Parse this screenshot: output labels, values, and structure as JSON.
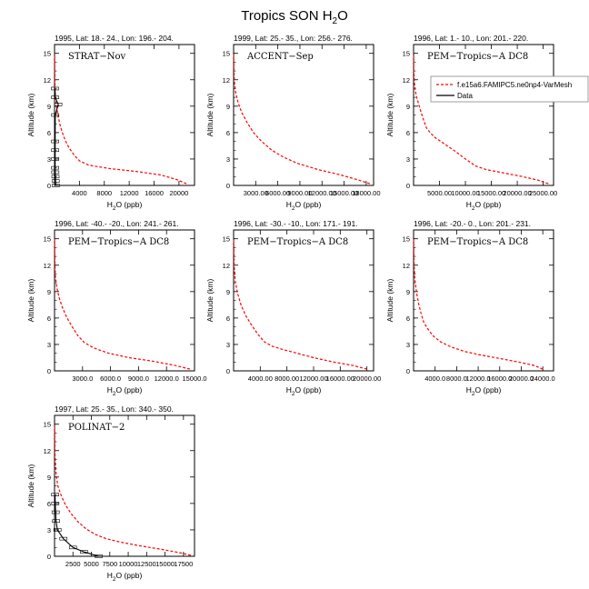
{
  "figure": {
    "title_main": "Tropics SON H",
    "title_sub": "2",
    "title_tail": "O"
  },
  "legend": {
    "model_label": "f.e15a6.FAMIPC5.ne0np4-VarMesh",
    "data_label": "Data",
    "model_color": "#ff0000",
    "data_color": "#000000"
  },
  "chart_data": [
    {
      "type": "line",
      "header": "1995, Lat: 18.- 24., Lon: 196.- 204.",
      "campaign": "STRAT−Nov",
      "xlabel_main": "H",
      "xlabel_sub": "2",
      "xlabel_tail": "O (ppb)",
      "ylabel": "Altitude (km)",
      "xlim": [
        0,
        22500
      ],
      "ylim": [
        0,
        16
      ],
      "xticks": [
        4000,
        8000,
        12000,
        16000,
        20000
      ],
      "xtick_labels": [
        "4000",
        "8000",
        "12000",
        "16000",
        "20000"
      ],
      "yticks": [
        0,
        3,
        6,
        9,
        12,
        15
      ],
      "ytick_labels": [
        "0",
        "3",
        "6",
        "9",
        "12",
        "15"
      ],
      "series": [
        {
          "name": "f.e15a6.FAMIPC5.ne0np4-VarMesh",
          "style": "dashed",
          "x": [
            21200,
            19500,
            17000,
            13000,
            9000,
            5500,
            4000,
            3200,
            2400,
            1800,
            1300,
            900,
            600,
            300,
            150,
            80,
            40,
            15
          ],
          "y": [
            0.2,
            0.7,
            1.2,
            1.6,
            1.9,
            2.3,
            2.8,
            3.4,
            4.2,
            5.0,
            5.9,
            6.8,
            7.8,
            9.0,
            10.2,
            11.5,
            13.0,
            15.0
          ]
        },
        {
          "name": "Data",
          "style": "solid",
          "x": [
            200,
            180,
            150,
            120,
            100,
            100,
            100,
            100,
            110,
            600,
            100,
            70
          ],
          "y": [
            0,
            0.5,
            1.0,
            1.5,
            2.0,
            3.0,
            4.0,
            5.0,
            8.0,
            9.2,
            10.0,
            11.0
          ]
        }
      ]
    },
    {
      "type": "line",
      "header": "1999, Lat: 25.- 35., Lon: 256.- 276.",
      "campaign": "ACCENT−Sep",
      "xlabel_main": "H",
      "xlabel_sub": "2",
      "xlabel_tail": "O (ppb)",
      "ylabel": "Altitude (km)",
      "xlim": [
        0,
        19000
      ],
      "ylim": [
        0,
        16
      ],
      "xticks": [
        3000,
        6000,
        9000,
        12000,
        15000,
        18000
      ],
      "xtick_labels": [
        "3000.00",
        "6000.00",
        "9000.00",
        "12000.00",
        "15000.00",
        "18000.00"
      ],
      "yticks": [
        0,
        3,
        6,
        9,
        12,
        15
      ],
      "ytick_labels": [
        "0",
        "3",
        "6",
        "9",
        "12",
        "15"
      ],
      "series": [
        {
          "name": "f.e15a6.FAMIPC5.ne0np4-VarMesh",
          "style": "dashed",
          "x": [
            18500,
            17000,
            14500,
            11500,
            8700,
            6800,
            5200,
            3800,
            2700,
            1800,
            1100,
            600,
            300,
            120,
            50,
            15
          ],
          "y": [
            0.2,
            0.6,
            1.2,
            1.8,
            2.5,
            3.2,
            4.0,
            5.0,
            6.0,
            7.2,
            8.3,
            9.4,
            10.5,
            11.6,
            13.0,
            15.0
          ]
        }
      ]
    },
    {
      "type": "line",
      "header": "1996, Lat: 1.- 10., Lon: 201.- 220.",
      "campaign": "PEM−Tropics−A DC8",
      "xlabel_main": "H",
      "xlabel_sub": "2",
      "xlabel_tail": "O (ppb)",
      "ylabel": "Altitude (km)",
      "xlim": [
        0,
        27000
      ],
      "ylim": [
        0,
        16
      ],
      "xticks": [
        5000,
        10000,
        15000,
        20000,
        25000
      ],
      "xtick_labels": [
        "5000.00",
        "10000.00",
        "15000.00",
        "20000.00",
        "25000.00"
      ],
      "yticks": [
        0,
        3,
        6,
        9,
        12,
        15
      ],
      "ytick_labels": [
        "0",
        "3",
        "6",
        "9",
        "12",
        "15"
      ],
      "series": [
        {
          "name": "f.e15a6.FAMIPC5.ne0np4-VarMesh",
          "style": "dashed",
          "x": [
            26000,
            24000,
            21000,
            17500,
            14000,
            12000,
            10000,
            8000,
            6000,
            4000,
            3200,
            2500,
            2000,
            1500,
            1000,
            500,
            200,
            60,
            15
          ],
          "y": [
            0.2,
            0.6,
            1.0,
            1.4,
            1.8,
            2.2,
            3.0,
            3.9,
            4.7,
            5.5,
            6.0,
            6.5,
            7.3,
            8.2,
            9.2,
            10.2,
            11.4,
            13.0,
            15.0
          ]
        }
      ]
    },
    {
      "type": "line",
      "header": "1996, Lat: -40.- -20., Lon: 241.- 261.",
      "campaign": "PEM−Tropics−A DC8",
      "xlabel_main": "H",
      "xlabel_sub": "2",
      "xlabel_tail": "O (ppb)",
      "ylabel": "Altitude (km)",
      "xlim": [
        0,
        15000
      ],
      "ylim": [
        0,
        16
      ],
      "xticks": [
        3000,
        6000,
        9000,
        12000,
        15000
      ],
      "xtick_labels": [
        "3000.0",
        "6000.0",
        "9000.0",
        "12000.0",
        "15000.0"
      ],
      "yticks": [
        0,
        3,
        6,
        9,
        12,
        15
      ],
      "ytick_labels": [
        "0",
        "3",
        "6",
        "9",
        "12",
        "15"
      ],
      "series": [
        {
          "name": "f.e15a6.FAMIPC5.ne0np4-VarMesh",
          "style": "dashed",
          "x": [
            14500,
            13000,
            10500,
            8000,
            5800,
            4200,
            3200,
            2500,
            1900,
            1300,
            850,
            500,
            250,
            100,
            40,
            10
          ],
          "y": [
            0.2,
            0.6,
            1.1,
            1.5,
            2.0,
            2.6,
            3.2,
            4.0,
            5.0,
            6.1,
            7.2,
            8.3,
            9.4,
            10.6,
            12.2,
            15.0
          ]
        }
      ]
    },
    {
      "type": "line",
      "header": "1996, Lat: -30.- -10., Lon: 171.- 191.",
      "campaign": "PEM−Tropics−A DC8",
      "xlabel_main": "H",
      "xlabel_sub": "2",
      "xlabel_tail": "O (ppb)",
      "ylabel": "Altitude (km)",
      "xlim": [
        0,
        21000
      ],
      "ylim": [
        0,
        16
      ],
      "xticks": [
        4000,
        8000,
        12000,
        16000,
        20000
      ],
      "xtick_labels": [
        "4000.00",
        "8000.00",
        "12000.00",
        "16000.00",
        "20000.00"
      ],
      "yticks": [
        0,
        3,
        6,
        9,
        12,
        15
      ],
      "ytick_labels": [
        "0",
        "3",
        "6",
        "9",
        "12",
        "15"
      ],
      "series": [
        {
          "name": "f.e15a6.FAMIPC5.ne0np4-VarMesh",
          "style": "dashed",
          "x": [
            20000,
            18000,
            15000,
            12000,
            9500,
            7500,
            5800,
            4600,
            3600,
            2600,
            1800,
            1100,
            600,
            250,
            80,
            20
          ],
          "y": [
            0.2,
            0.6,
            1.0,
            1.5,
            2.0,
            2.4,
            2.8,
            3.3,
            4.2,
            5.3,
            6.3,
            7.5,
            8.8,
            10.2,
            12.0,
            15.0
          ]
        }
      ]
    },
    {
      "type": "line",
      "header": "1996, Lat: -20.- 0., Lon: 201.- 231.",
      "campaign": "PEM−Tropics−A DC8",
      "xlabel_main": "H",
      "xlabel_sub": "2",
      "xlabel_tail": "O (ppb)",
      "ylabel": "Altitude (km)",
      "xlim": [
        0,
        26000
      ],
      "ylim": [
        0,
        16
      ],
      "xticks": [
        4000,
        8000,
        12000,
        16000,
        20000,
        24000
      ],
      "xtick_labels": [
        "4000.0",
        "8000.0",
        "12000.0",
        "16000.0",
        "20000.0",
        "24000.0"
      ],
      "yticks": [
        0,
        3,
        6,
        9,
        12,
        15
      ],
      "ytick_labels": [
        "0",
        "3",
        "6",
        "9",
        "12",
        "15"
      ],
      "series": [
        {
          "name": "f.e15a6.FAMIPC5.ne0np4-VarMesh",
          "style": "dashed",
          "x": [
            24000,
            22500,
            19500,
            16000,
            12500,
            9500,
            7000,
            5000,
            3600,
            2600,
            1900,
            1400,
            950,
            550,
            250,
            80,
            20
          ],
          "y": [
            0.2,
            0.6,
            1.0,
            1.4,
            1.8,
            2.2,
            2.7,
            3.3,
            4.0,
            4.8,
            5.5,
            6.5,
            7.6,
            8.9,
            10.3,
            12.2,
            15.0
          ]
        }
      ]
    },
    {
      "type": "line",
      "header": "1997, Lat: 25.- 35., Lon: 340.- 350.",
      "campaign": "POLINAT−2",
      "xlabel_main": "H",
      "xlabel_sub": "2",
      "xlabel_tail": "O (ppb)",
      "ylabel": "Altitude (km)",
      "xlim": [
        0,
        19000
      ],
      "ylim": [
        0,
        16
      ],
      "xticks": [
        2500,
        5000,
        7500,
        10000,
        12500,
        15000,
        17500
      ],
      "xtick_labels": [
        "2500",
        "5000",
        "7500",
        "10000",
        "12500",
        "15000",
        "17500"
      ],
      "yticks": [
        0,
        3,
        6,
        9,
        12,
        15
      ],
      "ytick_labels": [
        "0",
        "3",
        "6",
        "9",
        "12",
        "15"
      ],
      "series": [
        {
          "name": "f.e15a6.FAMIPC5.ne0np4-VarMesh",
          "style": "dashed",
          "x": [
            18500,
            17000,
            14500,
            11500,
            9000,
            7000,
            5500,
            4300,
            3200,
            2300,
            1500,
            900,
            450,
            200,
            60,
            15
          ],
          "y": [
            0.1,
            0.4,
            0.8,
            1.2,
            1.6,
            2.0,
            2.5,
            3.1,
            3.9,
            4.8,
            5.8,
            6.9,
            8.0,
            9.5,
            11.5,
            15.0
          ]
        },
        {
          "name": "Data",
          "style": "solid",
          "x": [
            6000,
            4000,
            2500,
            1200,
            400,
            200,
            150,
            100,
            80
          ],
          "y": [
            0,
            0.5,
            1.0,
            2.0,
            3.0,
            4.0,
            5.0,
            6.0,
            7.0
          ]
        }
      ]
    }
  ]
}
